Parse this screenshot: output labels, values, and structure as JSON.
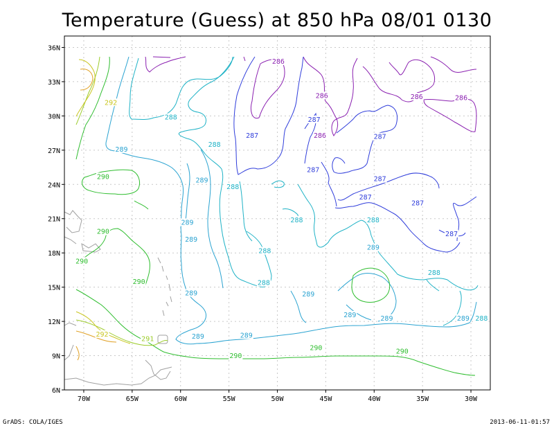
{
  "title": "Temperature (Guess) at 850 hPa 08/01 0130",
  "footer": {
    "left": "GrADS: COLA/IGES",
    "right": "2013-06-11-01:57"
  },
  "map": {
    "lon_range": [
      -72,
      -28
    ],
    "lat_range": [
      6,
      37
    ],
    "x_ticks": [
      {
        "lon": -70,
        "label": "70W"
      },
      {
        "lon": -65,
        "label": "65W"
      },
      {
        "lon": -60,
        "label": "60W"
      },
      {
        "lon": -55,
        "label": "55W"
      },
      {
        "lon": -50,
        "label": "50W"
      },
      {
        "lon": -45,
        "label": "45W"
      },
      {
        "lon": -40,
        "label": "40W"
      },
      {
        "lon": -35,
        "label": "35W"
      },
      {
        "lon": -30,
        "label": "30W"
      }
    ],
    "y_ticks": [
      {
        "lat": 6,
        "label": "6N"
      },
      {
        "lat": 9,
        "label": "9N"
      },
      {
        "lat": 12,
        "label": "12N"
      },
      {
        "lat": 15,
        "label": "15N"
      },
      {
        "lat": 18,
        "label": "18N"
      },
      {
        "lat": 21,
        "label": "21N"
      },
      {
        "lat": 24,
        "label": "24N"
      },
      {
        "lat": 27,
        "label": "27N"
      },
      {
        "lat": 30,
        "label": "30N"
      },
      {
        "lat": 33,
        "label": "33N"
      },
      {
        "lat": 36,
        "label": "36N"
      }
    ],
    "grid": true,
    "contour_colors": {
      "286": "#8a1fb0",
      "287": "#2f3ddb",
      "288": "#1eb2c6",
      "289": "#2aa3d1",
      "290": "#2ebd2e",
      "291": "#9bcb28",
      "292": "#c9c51e",
      "293": "#e0a024",
      "land": "#a0a0a0"
    }
  },
  "contour_labels": [
    {
      "text": "286",
      "lon": -49.9,
      "lat": 34.7,
      "level": "286"
    },
    {
      "text": "286",
      "lon": -45.4,
      "lat": 31.7,
      "level": "286"
    },
    {
      "text": "286",
      "lon": -35.6,
      "lat": 31.6,
      "level": "286"
    },
    {
      "text": "286",
      "lon": -31.0,
      "lat": 31.5,
      "level": "286"
    },
    {
      "text": "286",
      "lon": -45.6,
      "lat": 28.2,
      "level": "286"
    },
    {
      "text": "287",
      "lon": -46.2,
      "lat": 29.6,
      "level": "287"
    },
    {
      "text": "287",
      "lon": -52.6,
      "lat": 28.2,
      "level": "287"
    },
    {
      "text": "287",
      "lon": -39.4,
      "lat": 28.1,
      "level": "287"
    },
    {
      "text": "287",
      "lon": -46.3,
      "lat": 25.2,
      "level": "287"
    },
    {
      "text": "287",
      "lon": -39.4,
      "lat": 24.4,
      "level": "287"
    },
    {
      "text": "287",
      "lon": -40.9,
      "lat": 22.8,
      "level": "287"
    },
    {
      "text": "287",
      "lon": -35.5,
      "lat": 22.3,
      "level": "287"
    },
    {
      "text": "287",
      "lon": -32.0,
      "lat": 19.6,
      "level": "287"
    },
    {
      "text": "288",
      "lon": -61.0,
      "lat": 29.8,
      "level": "288"
    },
    {
      "text": "288",
      "lon": -56.5,
      "lat": 27.4,
      "level": "288"
    },
    {
      "text": "288",
      "lon": -54.6,
      "lat": 23.7,
      "level": "288"
    },
    {
      "text": "288",
      "lon": -48.0,
      "lat": 20.8,
      "level": "288"
    },
    {
      "text": "288",
      "lon": -40.1,
      "lat": 20.8,
      "level": "288"
    },
    {
      "text": "288",
      "lon": -51.3,
      "lat": 18.1,
      "level": "288"
    },
    {
      "text": "288",
      "lon": -51.4,
      "lat": 15.3,
      "level": "288"
    },
    {
      "text": "288",
      "lon": -33.8,
      "lat": 16.2,
      "level": "288"
    },
    {
      "text": "288",
      "lon": -28.9,
      "lat": 12.2,
      "level": "288"
    },
    {
      "text": "289",
      "lon": -66.1,
      "lat": 27.0,
      "level": "289"
    },
    {
      "text": "289",
      "lon": -57.8,
      "lat": 24.3,
      "level": "289"
    },
    {
      "text": "289",
      "lon": -59.3,
      "lat": 20.6,
      "level": "289"
    },
    {
      "text": "289",
      "lon": -58.9,
      "lat": 19.1,
      "level": "289"
    },
    {
      "text": "289",
      "lon": -40.1,
      "lat": 18.4,
      "level": "289"
    },
    {
      "text": "289",
      "lon": -58.9,
      "lat": 14.4,
      "level": "289"
    },
    {
      "text": "289",
      "lon": -46.8,
      "lat": 14.3,
      "level": "289"
    },
    {
      "text": "289",
      "lon": -42.5,
      "lat": 12.5,
      "level": "289"
    },
    {
      "text": "289",
      "lon": -38.7,
      "lat": 12.2,
      "level": "289"
    },
    {
      "text": "289",
      "lon": -30.8,
      "lat": 12.2,
      "level": "289"
    },
    {
      "text": "289",
      "lon": -58.2,
      "lat": 10.6,
      "level": "289"
    },
    {
      "text": "289",
      "lon": -53.2,
      "lat": 10.7,
      "level": "289"
    },
    {
      "text": "290",
      "lon": -68.0,
      "lat": 24.6,
      "level": "290"
    },
    {
      "text": "290",
      "lon": -68.0,
      "lat": 19.8,
      "level": "290"
    },
    {
      "text": "290",
      "lon": -70.2,
      "lat": 17.2,
      "level": "290"
    },
    {
      "text": "290",
      "lon": -64.3,
      "lat": 15.4,
      "level": "290"
    },
    {
      "text": "290",
      "lon": -54.3,
      "lat": 8.9,
      "level": "290"
    },
    {
      "text": "290",
      "lon": -46.0,
      "lat": 9.6,
      "level": "290"
    },
    {
      "text": "290",
      "lon": -37.1,
      "lat": 9.3,
      "level": "290"
    },
    {
      "text": "291",
      "lon": -63.4,
      "lat": 10.4,
      "level": "291"
    },
    {
      "text": "292",
      "lon": -67.2,
      "lat": 31.1,
      "level": "292"
    },
    {
      "text": "292",
      "lon": -68.1,
      "lat": 10.8,
      "level": "292"
    }
  ]
}
